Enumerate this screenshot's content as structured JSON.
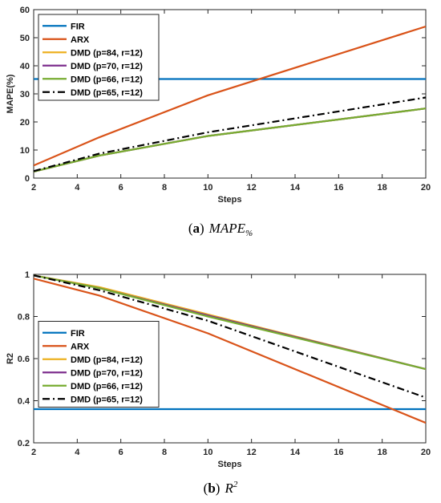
{
  "captions": [
    {
      "paren_open": "(",
      "label": "a",
      "paren_close": ")",
      "math": "MAPE",
      "math_sub": "%",
      "math_sup": ""
    },
    {
      "paren_open": "(",
      "label": "b",
      "paren_close": ")",
      "math": "R",
      "math_sub": "",
      "math_sup": "2"
    }
  ],
  "chart_data": [
    {
      "type": "line",
      "title": "",
      "xlabel": "Steps",
      "ylabel": "MAPE(%)",
      "xlim": [
        2,
        20
      ],
      "ylim": [
        0,
        60
      ],
      "xticks": [
        2,
        4,
        6,
        8,
        10,
        12,
        14,
        16,
        18,
        20
      ],
      "yticks": [
        0,
        10,
        20,
        30,
        40,
        50,
        60
      ],
      "grid": false,
      "legend_position": "top-left",
      "x": [
        2,
        5,
        10,
        20
      ],
      "series": [
        {
          "name": "FIR",
          "values": [
            35.3,
            35.3,
            35.3,
            35.3
          ],
          "color": "#0072BD",
          "dash": "solid"
        },
        {
          "name": "ARX",
          "values": [
            4.5,
            14.5,
            29.5,
            54
          ],
          "color": "#D95319",
          "dash": "solid"
        },
        {
          "name": "DMD (p=84, r=12)",
          "values": [
            2.3,
            8,
            15,
            24.8
          ],
          "color": "#EDB120",
          "dash": "solid"
        },
        {
          "name": "DMD (p=70, r=12)",
          "values": [
            2.3,
            8,
            15,
            24.8
          ],
          "color": "#7E2F8E",
          "dash": "solid"
        },
        {
          "name": "DMD (p=66, r=12)",
          "values": [
            2.3,
            8,
            15,
            24.8
          ],
          "color": "#77AC30",
          "dash": "solid"
        },
        {
          "name": "DMD (p=65, r=12)",
          "values": [
            2.5,
            8.7,
            16.3,
            28.7
          ],
          "color": "#000000",
          "dash": "dashdot"
        }
      ]
    },
    {
      "type": "line",
      "title": "",
      "xlabel": "Steps",
      "ylabel": "R2",
      "xlim": [
        2,
        20
      ],
      "ylim": [
        0.2,
        1
      ],
      "xticks": [
        2,
        4,
        6,
        8,
        10,
        12,
        14,
        16,
        18,
        20
      ],
      "yticks": [
        0.2,
        0.4,
        0.6,
        0.8,
        1
      ],
      "grid": false,
      "legend_position": "left",
      "x": [
        2,
        5,
        10,
        20
      ],
      "series": [
        {
          "name": "FIR",
          "values": [
            0.36,
            0.36,
            0.36,
            0.36
          ],
          "color": "#0072BD",
          "dash": "solid"
        },
        {
          "name": "ARX",
          "values": [
            0.98,
            0.9,
            0.72,
            0.295
          ],
          "color": "#D95319",
          "dash": "solid"
        },
        {
          "name": "DMD (p=84, r=12)",
          "values": [
            0.995,
            0.94,
            0.81,
            0.55
          ],
          "color": "#EDB120",
          "dash": "solid"
        },
        {
          "name": "DMD (p=70, r=12)",
          "values": [
            0.995,
            0.935,
            0.805,
            0.55
          ],
          "color": "#7E2F8E",
          "dash": "solid"
        },
        {
          "name": "DMD (p=66, r=12)",
          "values": [
            0.995,
            0.935,
            0.8,
            0.55
          ],
          "color": "#77AC30",
          "dash": "solid"
        },
        {
          "name": "DMD (p=65, r=12)",
          "values": [
            0.995,
            0.925,
            0.78,
            0.415
          ],
          "color": "#000000",
          "dash": "dashdot"
        }
      ]
    }
  ]
}
